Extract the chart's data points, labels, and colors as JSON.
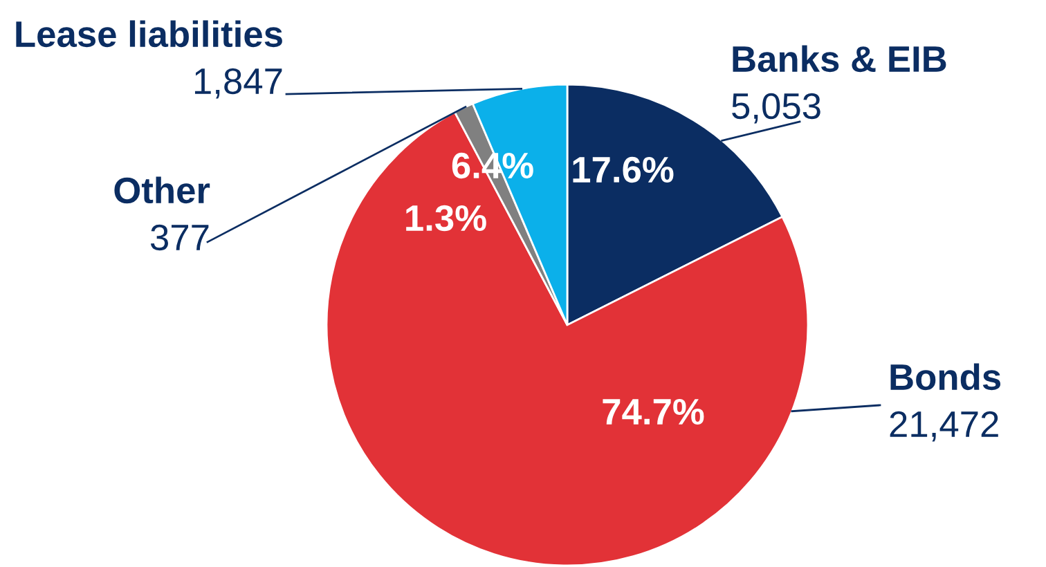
{
  "chart_data": {
    "type": "pie",
    "categories": [
      "Banks & EIB",
      "Bonds",
      "Other",
      "Lease liabilities"
    ],
    "values": [
      5053,
      21472,
      377,
      1847
    ],
    "value_labels": [
      "5,053",
      "21,472",
      "377",
      "1,847"
    ],
    "annotations": [
      "17.6%",
      "74.7%",
      "1.3%",
      "6.4%"
    ],
    "colors": [
      "#0b2d62",
      "#e23237",
      "#808080",
      "#0bb0ea"
    ],
    "legend": false
  }
}
